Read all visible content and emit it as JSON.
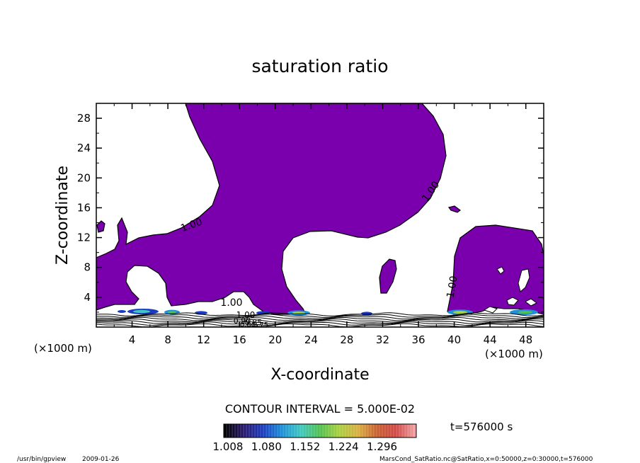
{
  "chart_data": {
    "type": "heatmap",
    "title": "saturation ratio",
    "xlabel": "X-coordinate",
    "ylabel": "Z-coordinate",
    "x_unit": "(×1000 m)",
    "y_unit": "(×1000 m)",
    "xlim": [
      0,
      50
    ],
    "ylim": [
      0,
      30
    ],
    "xticks": [
      "4",
      "8",
      "12",
      "16",
      "20",
      "24",
      "28",
      "32",
      "36",
      "40",
      "44",
      "48"
    ],
    "yticks": [
      "4",
      "8",
      "12",
      "16",
      "20",
      "24",
      "28"
    ],
    "contour_labels": [
      "1.00",
      "1.00",
      "1.00",
      "1.00",
      "1.00",
      "0.90",
      "0.85",
      "0.80",
      "0.75"
    ],
    "contour_interval_text": "CONTOUR INTERVAL = 5.000E-02",
    "colorbar": {
      "ticks": [
        "1.008",
        "1.080",
        "1.152",
        "1.224",
        "1.296"
      ],
      "stops": [
        "#000000",
        "#2a1a6e",
        "#1c3cc0",
        "#1e90d8",
        "#40c8c0",
        "#50c050",
        "#a8d040",
        "#d8b040",
        "#c86030",
        "#d04848",
        "#f0a0a0"
      ]
    },
    "time_label": "t=576000 s",
    "fill_color": "#7a00ae"
  },
  "footer": {
    "program": "/usr/bin/gpview",
    "date": "2009-01-26",
    "source": "MarsCond_SatRatio.nc@SatRatio,x=0:50000,z=0:30000,t=576000"
  }
}
